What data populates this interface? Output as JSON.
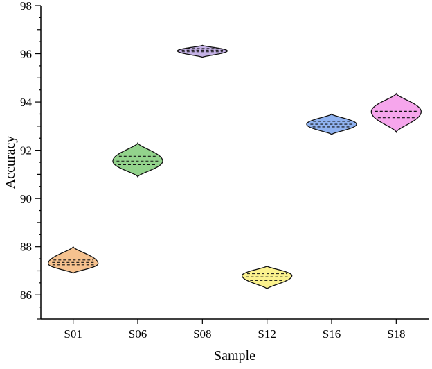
{
  "chart_data": {
    "type": "violin",
    "title": "",
    "xlabel": "Sample",
    "ylabel": "Accuracy",
    "ylim": [
      85,
      98
    ],
    "yticks": [
      86,
      88,
      90,
      92,
      94,
      96,
      98
    ],
    "categories": [
      "S01",
      "S06",
      "S08",
      "S12",
      "S16",
      "S18"
    ],
    "grid": false,
    "legend": "none",
    "series": [
      {
        "category": "S01",
        "color": "#f6c28f",
        "min": 86.9,
        "max": 88.0,
        "median": 87.35,
        "q1": 87.25,
        "q3": 87.45,
        "peak": 87.3
      },
      {
        "category": "S06",
        "color": "#93d38c",
        "min": 90.9,
        "max": 92.3,
        "median": 91.55,
        "q1": 91.4,
        "q3": 91.75,
        "peak": 91.55
      },
      {
        "category": "S08",
        "color": "#c5b2e6",
        "min": 95.85,
        "max": 96.35,
        "median": 96.15,
        "q1": 96.08,
        "q3": 96.22,
        "peak": 96.12
      },
      {
        "category": "S12",
        "color": "#fbf28e",
        "min": 86.25,
        "max": 87.2,
        "median": 86.75,
        "q1": 86.6,
        "q3": 86.88,
        "peak": 86.8
      },
      {
        "category": "S16",
        "color": "#8fb2f0",
        "min": 92.65,
        "max": 93.5,
        "median": 93.08,
        "q1": 92.97,
        "q3": 93.2,
        "peak": 93.08
      },
      {
        "category": "S18",
        "color": "#f6a6ec",
        "min": 92.75,
        "max": 94.35,
        "median": 93.6,
        "q1": 93.35,
        "q3": 93.62,
        "peak": 93.6
      }
    ]
  }
}
